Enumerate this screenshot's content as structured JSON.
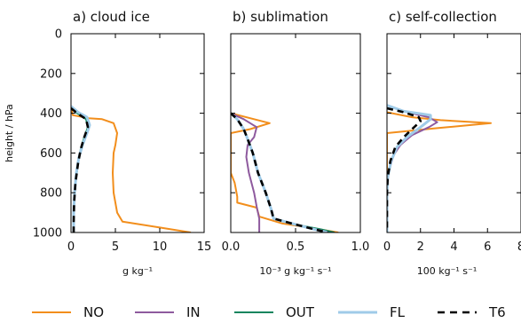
{
  "chart_data": {
    "type": "line",
    "ylabel": "height / hPa",
    "ylim": [
      1000,
      0
    ],
    "yticks": [
      0,
      200,
      400,
      600,
      800,
      1000
    ],
    "panels": [
      {
        "title": "a)   cloud ice",
        "xlabel": "g kg⁻¹",
        "xlim": [
          0,
          15
        ],
        "xticks": [
          0,
          5,
          10,
          15
        ],
        "xtick_labels": [
          "0",
          "5",
          "10",
          "15"
        ],
        "series": [
          {
            "name": "NO",
            "points": [
              [
                0,
                370
              ],
              [
                0.2,
                410
              ],
              [
                2,
                425
              ],
              [
                3.5,
                430
              ],
              [
                4.8,
                450
              ],
              [
                5.2,
                500
              ],
              [
                5,
                560
              ],
              [
                4.8,
                600
              ],
              [
                4.7,
                700
              ],
              [
                4.8,
                800
              ],
              [
                5.2,
                900
              ],
              [
                5.8,
                945
              ],
              [
                10,
                975
              ],
              [
                13.5,
                1000
              ]
            ]
          },
          {
            "name": "IN",
            "points": [
              [
                0,
                365
              ],
              [
                0.8,
                395
              ],
              [
                1.8,
                420
              ],
              [
                2.1,
                460
              ],
              [
                1.8,
                500
              ],
              [
                1.3,
                560
              ],
              [
                0.9,
                620
              ],
              [
                0.6,
                700
              ],
              [
                0.4,
                800
              ],
              [
                0.3,
                900
              ],
              [
                0.3,
                1000
              ]
            ]
          },
          {
            "name": "OUT",
            "points": [
              [
                0,
                375
              ],
              [
                0.7,
                400
              ],
              [
                1.7,
                430
              ],
              [
                1.9,
                470
              ],
              [
                1.5,
                520
              ],
              [
                1.1,
                580
              ],
              [
                0.8,
                650
              ],
              [
                0.5,
                750
              ],
              [
                0.35,
                850
              ],
              [
                0.3,
                950
              ],
              [
                0.3,
                1000
              ]
            ]
          },
          {
            "name": "FL",
            "points": [
              [
                0,
                365
              ],
              [
                0.8,
                395
              ],
              [
                1.8,
                420
              ],
              [
                2.1,
                460
              ],
              [
                1.8,
                500
              ],
              [
                1.3,
                560
              ],
              [
                0.9,
                620
              ],
              [
                0.6,
                700
              ],
              [
                0.4,
                800
              ],
              [
                0.3,
                900
              ],
              [
                0.3,
                1000
              ]
            ]
          },
          {
            "name": "T6",
            "points": [
              [
                0,
                375
              ],
              [
                0.7,
                400
              ],
              [
                1.7,
                430
              ],
              [
                1.9,
                470
              ],
              [
                1.5,
                520
              ],
              [
                1.1,
                580
              ],
              [
                0.8,
                650
              ],
              [
                0.5,
                750
              ],
              [
                0.35,
                850
              ],
              [
                0.3,
                950
              ],
              [
                0.3,
                1000
              ]
            ]
          }
        ]
      },
      {
        "title": "b)  sublimation",
        "xlabel": "10⁻³ g kg⁻¹ s⁻¹",
        "xlim": [
          0,
          1
        ],
        "xticks": [
          0,
          0.5,
          1
        ],
        "xtick_labels": [
          "0.0",
          "0.5",
          "1.0"
        ],
        "series": [
          {
            "name": "NO",
            "points": [
              [
                0,
                400
              ],
              [
                0.3,
                450
              ],
              [
                0.15,
                480
              ],
              [
                0,
                500
              ],
              [
                0,
                700
              ],
              [
                0.03,
                750
              ],
              [
                0.05,
                820
              ],
              [
                0.05,
                850
              ],
              [
                0.2,
                875
              ],
              [
                0.22,
                920
              ],
              [
                0.4,
                955
              ],
              [
                0.6,
                975
              ],
              [
                0.83,
                1000
              ]
            ]
          },
          {
            "name": "IN",
            "points": [
              [
                0,
                400
              ],
              [
                0.1,
                430
              ],
              [
                0.2,
                470
              ],
              [
                0.18,
                520
              ],
              [
                0.13,
                560
              ],
              [
                0.12,
                620
              ],
              [
                0.14,
                700
              ],
              [
                0.18,
                800
              ],
              [
                0.2,
                870
              ],
              [
                0.22,
                930
              ],
              [
                0.22,
                1000
              ]
            ]
          },
          {
            "name": "OUT",
            "points": [
              [
                0,
                400
              ],
              [
                0.05,
                430
              ],
              [
                0.1,
                480
              ],
              [
                0.13,
                530
              ],
              [
                0.17,
                600
              ],
              [
                0.21,
                700
              ],
              [
                0.27,
                800
              ],
              [
                0.31,
                880
              ],
              [
                0.33,
                930
              ],
              [
                0.5,
                960
              ],
              [
                0.7,
                985
              ],
              [
                0.8,
                1000
              ]
            ]
          },
          {
            "name": "FL",
            "points": [
              [
                0,
                400
              ],
              [
                0.05,
                430
              ],
              [
                0.1,
                480
              ],
              [
                0.13,
                530
              ],
              [
                0.17,
                600
              ],
              [
                0.21,
                700
              ],
              [
                0.27,
                800
              ],
              [
                0.31,
                880
              ],
              [
                0.33,
                930
              ],
              [
                0.5,
                960
              ],
              [
                0.65,
                985
              ],
              [
                0.75,
                1000
              ]
            ]
          },
          {
            "name": "T6",
            "points": [
              [
                0,
                400
              ],
              [
                0.05,
                430
              ],
              [
                0.1,
                480
              ],
              [
                0.13,
                530
              ],
              [
                0.17,
                600
              ],
              [
                0.21,
                700
              ],
              [
                0.27,
                800
              ],
              [
                0.31,
                880
              ],
              [
                0.33,
                930
              ],
              [
                0.5,
                960
              ],
              [
                0.65,
                985
              ],
              [
                0.75,
                1000
              ]
            ]
          }
        ]
      },
      {
        "title": "c) self-collection",
        "xlabel": "100 kg⁻¹  s⁻¹",
        "xlim": [
          0,
          8
        ],
        "xticks": [
          0,
          2,
          4,
          6,
          8
        ],
        "xtick_labels": [
          "0",
          "2",
          "4",
          "6",
          "8"
        ],
        "series": [
          {
            "name": "NO",
            "points": [
              [
                0,
                395
              ],
              [
                1.5,
                420
              ],
              [
                3.2,
                435
              ],
              [
                6.2,
                450
              ],
              [
                3,
                475
              ],
              [
                0,
                500
              ],
              [
                0,
                1000
              ]
            ]
          },
          {
            "name": "IN",
            "points": [
              [
                0,
                360
              ],
              [
                1.2,
                395
              ],
              [
                2.5,
                420
              ],
              [
                3,
                445
              ],
              [
                2.5,
                470
              ],
              [
                1.5,
                510
              ],
              [
                0.8,
                560
              ],
              [
                0.4,
                610
              ],
              [
                0.15,
                680
              ],
              [
                0,
                760
              ],
              [
                0,
                1000
              ]
            ]
          },
          {
            "name": "OUT",
            "points": [
              [
                0,
                360
              ],
              [
                1,
                390
              ],
              [
                2.6,
                410
              ],
              [
                2.6,
                430
              ],
              [
                2,
                470
              ],
              [
                1.2,
                520
              ],
              [
                0.6,
                570
              ],
              [
                0.25,
                640
              ],
              [
                0.05,
                720
              ],
              [
                0,
                800
              ],
              [
                0,
                1000
              ]
            ]
          },
          {
            "name": "FL",
            "points": [
              [
                0,
                360
              ],
              [
                1,
                390
              ],
              [
                2.6,
                410
              ],
              [
                2.6,
                430
              ],
              [
                2,
                470
              ],
              [
                1.2,
                520
              ],
              [
                0.6,
                570
              ],
              [
                0.25,
                640
              ],
              [
                0.05,
                720
              ],
              [
                0,
                800
              ],
              [
                0,
                1000
              ]
            ]
          },
          {
            "name": "T6",
            "points": [
              [
                0,
                375
              ],
              [
                1,
                395
              ],
              [
                1.9,
                420
              ],
              [
                2,
                440
              ],
              [
                1.5,
                480
              ],
              [
                1,
                520
              ],
              [
                0.5,
                570
              ],
              [
                0.2,
                640
              ],
              [
                0.05,
                720
              ],
              [
                0,
                800
              ],
              [
                0,
                1000
              ]
            ]
          }
        ]
      }
    ],
    "legend": {
      "placement": "bottom",
      "entries": [
        {
          "name": "NO",
          "color": "#f28e1c",
          "dash": false
        },
        {
          "name": "IN",
          "color": "#8e5a9e",
          "dash": false
        },
        {
          "name": "OUT",
          "color": "#11855e",
          "dash": false
        },
        {
          "name": "FL",
          "color": "#9fcbe8",
          "dash": false
        },
        {
          "name": "T6",
          "color": "#000000",
          "dash": true
        }
      ]
    }
  }
}
